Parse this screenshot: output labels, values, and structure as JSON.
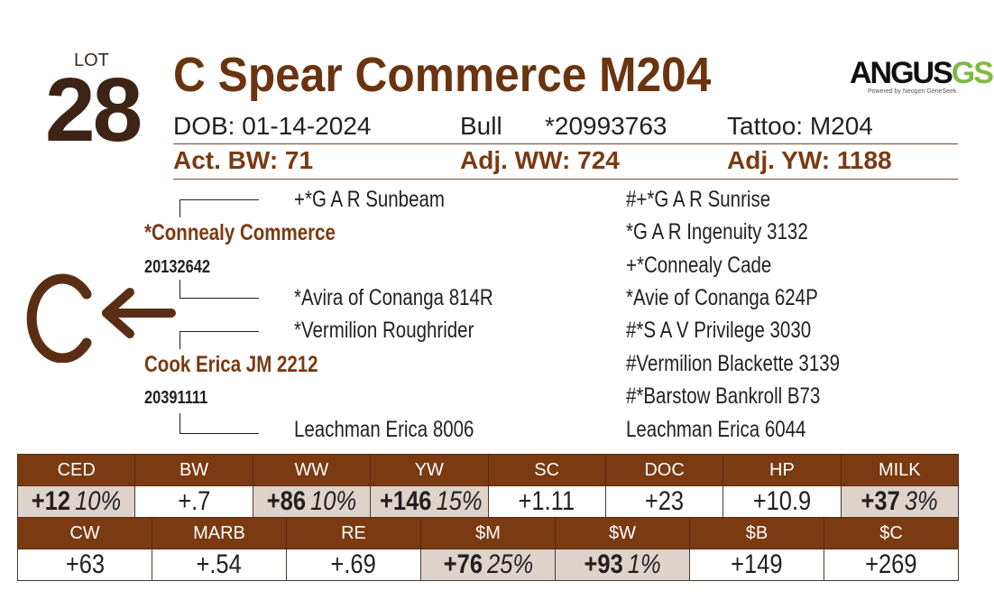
{
  "lot": {
    "label": "LOT",
    "number": "28"
  },
  "title": "C Spear Commerce M204",
  "logo": {
    "word": "ANGUS",
    "suffix": "GS",
    "tagline": "Powered by Neogen GeneSeek"
  },
  "info": {
    "dob": "DOB:  01-14-2024",
    "sex": "Bull",
    "reg": "*20993763",
    "tattoo": "Tattoo:  M204"
  },
  "weights": {
    "bw": "Act. BW: 71",
    "ww": "Adj. WW: 724",
    "yw": "Adj. YW: 1188"
  },
  "brand": {
    "letter": "C",
    "arrow": "←"
  },
  "pedigree": {
    "sire": "*Connealy Commerce",
    "sire_reg": "20132642",
    "sire_sire": "+*G A R Sunbeam",
    "sire_dam": "*Avira of Conanga 814R",
    "dam": "Cook Erica JM 2212",
    "dam_reg": "20391111",
    "dam_sire": "*Vermilion Roughrider",
    "dam_dam": "Leachman Erica 8006",
    "gg": [
      "#+*G A R Sunrise",
      "*G A R Ingenuity 3132",
      "+*Connealy Cade",
      "*Avie of Conanga 624P",
      "#*S A V Privilege 3030",
      "#Vermilion Blackette 3139",
      "#*Barstow Bankroll B73",
      "Leachman Erica 6044"
    ]
  },
  "epd_row1": [
    {
      "label": "CED",
      "value": "+12",
      "pct": "10%",
      "highlight": true
    },
    {
      "label": "BW",
      "value": "+.7",
      "pct": "",
      "highlight": false
    },
    {
      "label": "WW",
      "value": "+86",
      "pct": "10%",
      "highlight": true
    },
    {
      "label": "YW",
      "value": "+146",
      "pct": "15%",
      "highlight": true
    },
    {
      "label": "SC",
      "value": "+1.11",
      "pct": "",
      "highlight": false
    },
    {
      "label": "DOC",
      "value": "+23",
      "pct": "",
      "highlight": false
    },
    {
      "label": "HP",
      "value": "+10.9",
      "pct": "",
      "highlight": false
    },
    {
      "label": "MILK",
      "value": "+37",
      "pct": "3%",
      "highlight": true
    }
  ],
  "epd_row2": [
    {
      "label": "CW",
      "value": "+63",
      "pct": "",
      "highlight": false
    },
    {
      "label": "MARB",
      "value": "+.54",
      "pct": "",
      "highlight": false
    },
    {
      "label": "RE",
      "value": "+.69",
      "pct": "",
      "highlight": false
    },
    {
      "label": "$M",
      "value": "+76",
      "pct": "25%",
      "highlight": true
    },
    {
      "label": "$W",
      "value": "+93",
      "pct": "1%",
      "highlight": true
    },
    {
      "label": "$B",
      "value": "+149",
      "pct": "",
      "highlight": false
    },
    {
      "label": "$C",
      "value": "+269",
      "pct": "",
      "highlight": false
    }
  ],
  "colors": {
    "brown": "#7a3a12",
    "dark_brown": "#3d2416",
    "highlight": "#ddd3cb"
  }
}
